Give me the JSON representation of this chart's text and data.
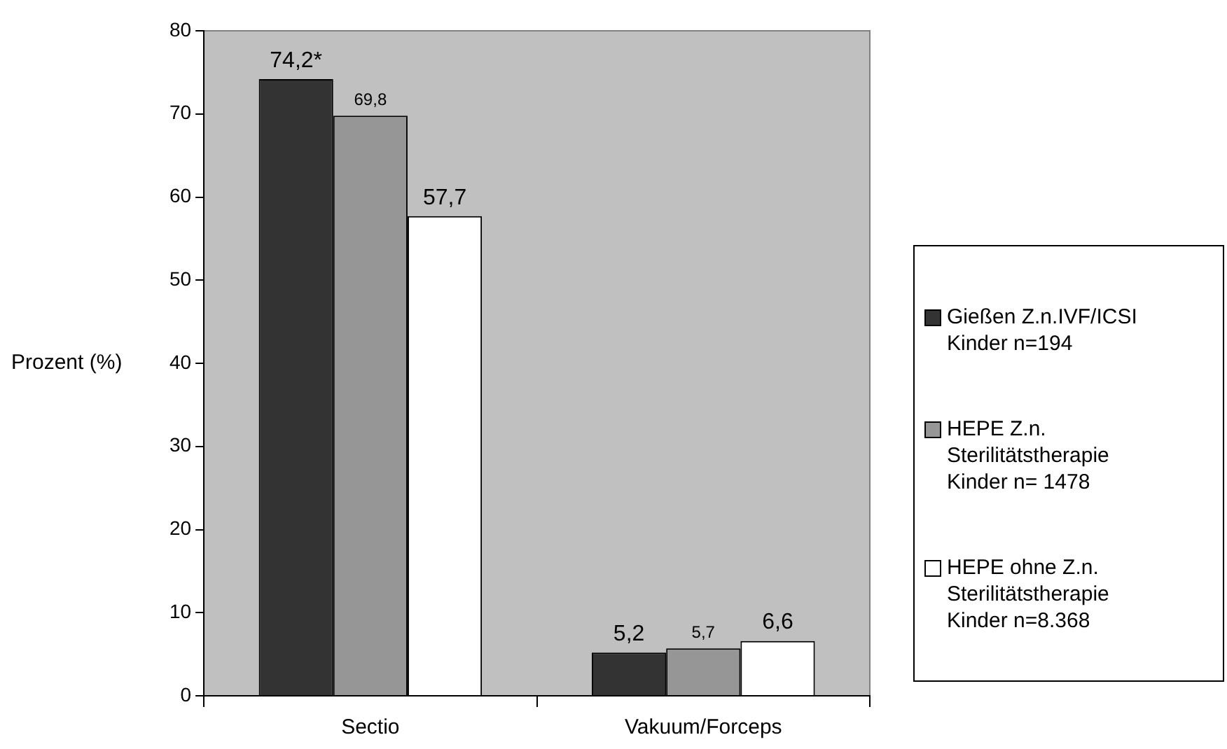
{
  "chart_data": {
    "type": "bar",
    "categories": [
      "Sectio",
      "Vakuum/Forceps"
    ],
    "ylabel": "Prozent (%)",
    "series": [
      {
        "name": "Gießen Z.n.IVF/ICSI Kinder n=194",
        "color": "#333333",
        "values": [
          74.2,
          5.2
        ],
        "value_labels": [
          "74,2*",
          "5,2"
        ]
      },
      {
        "name": "HEPE Z.n. Sterilitätstherapie Kinder n= 1478",
        "color": "#969696",
        "values": [
          69.8,
          5.7
        ],
        "value_labels": [
          "69,8",
          "5,7"
        ]
      },
      {
        "name": "HEPE ohne Z.n. Sterilitätstherapie Kinder n=8.368",
        "color": "#ffffff",
        "values": [
          57.7,
          6.6
        ],
        "value_labels": [
          "57,7",
          "6,6"
        ]
      }
    ],
    "ylim": [
      0,
      80
    ],
    "yticks": [
      0,
      10,
      20,
      30,
      40,
      50,
      60,
      70,
      80
    ],
    "grid": false,
    "legend": "right"
  }
}
